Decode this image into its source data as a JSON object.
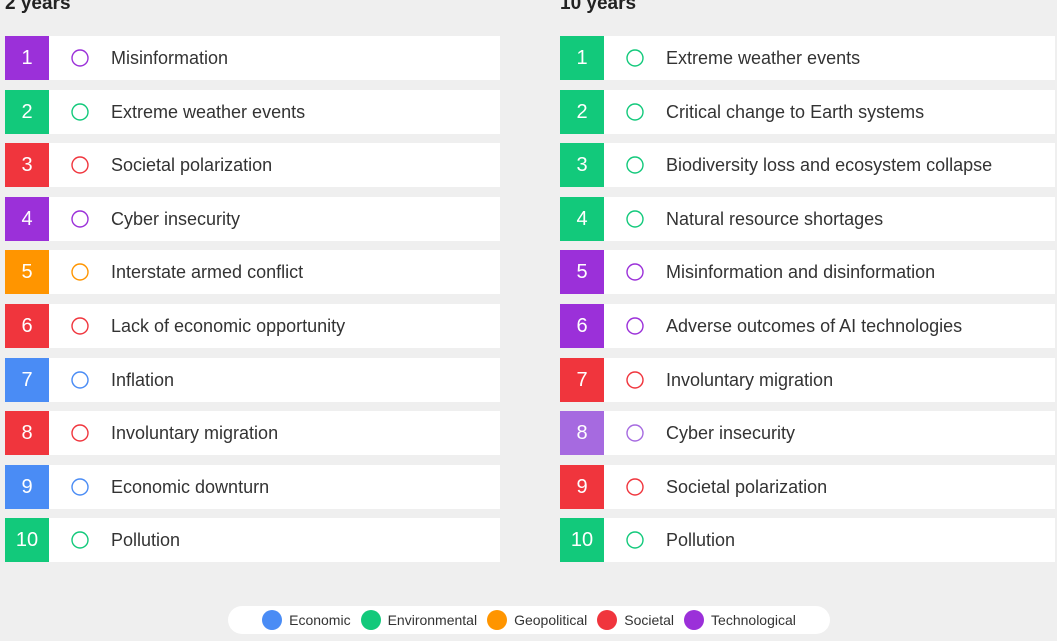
{
  "panels": [
    {
      "title": "2 years",
      "items": [
        {
          "rank": 1,
          "label": "Misinformation",
          "color": "#9b30d9"
        },
        {
          "rank": 2,
          "label": "Extreme weather events",
          "color": "#12c97b"
        },
        {
          "rank": 3,
          "label": "Societal polarization",
          "color": "#f0353d"
        },
        {
          "rank": 4,
          "label": "Cyber insecurity",
          "color": "#9b30d9"
        },
        {
          "rank": 5,
          "label": "Interstate armed conflict",
          "color": "#ff9500"
        },
        {
          "rank": 6,
          "label": "Lack of economic opportunity",
          "color": "#f0353d"
        },
        {
          "rank": 7,
          "label": "Inflation",
          "color": "#4a8cf5"
        },
        {
          "rank": 8,
          "label": "Involuntary migration",
          "color": "#f0353d"
        },
        {
          "rank": 9,
          "label": "Economic downturn",
          "color": "#4a8cf5"
        },
        {
          "rank": 10,
          "label": "Pollution",
          "color": "#12c97b"
        }
      ]
    },
    {
      "title": "10 years",
      "items": [
        {
          "rank": 1,
          "label": "Extreme weather events",
          "color": "#12c97b"
        },
        {
          "rank": 2,
          "label": "Critical change to Earth systems",
          "color": "#12c97b"
        },
        {
          "rank": 3,
          "label": "Biodiversity loss and ecosystem collapse",
          "color": "#12c97b"
        },
        {
          "rank": 4,
          "label": "Natural resource shortages",
          "color": "#12c97b"
        },
        {
          "rank": 5,
          "label": "Misinformation and disinformation",
          "color": "#9b30d9"
        },
        {
          "rank": 6,
          "label": "Adverse outcomes of AI technologies",
          "color": "#9b30d9"
        },
        {
          "rank": 7,
          "label": "Involuntary migration",
          "color": "#f0353d"
        },
        {
          "rank": 8,
          "label": "Cyber insecurity",
          "color": "#a66ae0"
        },
        {
          "rank": 9,
          "label": "Societal polarization",
          "color": "#f0353d"
        },
        {
          "rank": 10,
          "label": "Pollution",
          "color": "#12c97b"
        }
      ]
    }
  ],
  "legend": [
    {
      "label": "Economic",
      "color": "#4a8cf5"
    },
    {
      "label": "Environmental",
      "color": "#12c97b"
    },
    {
      "label": "Geopolitical",
      "color": "#ff9500"
    },
    {
      "label": "Societal",
      "color": "#f0353d"
    },
    {
      "label": "Technological",
      "color": "#9b30d9"
    }
  ]
}
